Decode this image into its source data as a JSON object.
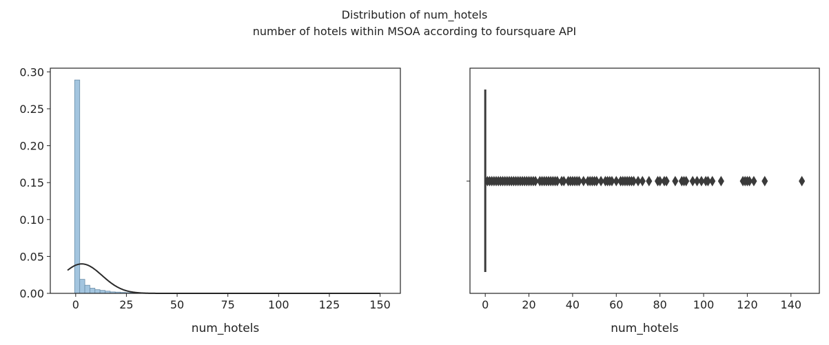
{
  "figure": {
    "title": "Distribution of num_hotels",
    "subtitle": "number of hotels within MSOA according to foursquare API"
  },
  "colors": {
    "bar_fill": "#a3c5df",
    "bar_edge": "#6a8da8",
    "kde_line": "#2a2a2a",
    "box": "#3a3a3a",
    "axes": "#222222"
  },
  "chart_data": [
    {
      "type": "bar",
      "name": "histogram-with-normal-fit",
      "xlabel": "num_hotels",
      "ylabel": "",
      "xlim": [
        -12.5,
        160
      ],
      "ylim": [
        0,
        0.305
      ],
      "xticks": [
        0,
        25,
        50,
        75,
        100,
        125,
        150
      ],
      "yticks": [
        0.0,
        0.05,
        0.1,
        0.15,
        0.2,
        0.25,
        0.3
      ],
      "ytick_labels": [
        "0.00",
        "0.05",
        "0.10",
        "0.15",
        "0.20",
        "0.25",
        "0.30"
      ],
      "bin_width": 2.5,
      "bin_start": -0.5,
      "values": [
        0.289,
        0.019,
        0.011,
        0.007,
        0.005,
        0.004,
        0.003,
        0.002,
        0.0017,
        0.0013,
        0.001,
        0.0008,
        0.0007,
        0.0006,
        0.0005,
        0.0005,
        0.0004,
        0.0004,
        0.0003,
        0.0003,
        0.0003,
        0.0002,
        0.0002,
        0.0002,
        0.0002,
        0.0002,
        0.0001,
        0.0001,
        0.0001,
        0.0001,
        0.0001,
        0.0001,
        0.0001,
        0.0001,
        0.0001,
        0.0001,
        0.0001,
        0.0001,
        0.0001,
        0.0001,
        0.0001,
        0.0001,
        0.0001,
        0.0001,
        0.0001,
        0.0001,
        0.0001,
        0.0001,
        0.0001,
        0.0001,
        0.0001,
        0.0001,
        0.0001,
        0.0001,
        0.0001,
        0.0001,
        0.0001,
        0.0001,
        0.0001,
        0.0001
      ],
      "normal_fit": {
        "mean": 3,
        "std": 10,
        "x_range": [
          -4,
          150
        ]
      },
      "grid": false
    },
    {
      "type": "scatter",
      "name": "boxplot",
      "xlabel": "num_hotels",
      "xlim": [
        -7,
        153
      ],
      "xticks": [
        0,
        20,
        40,
        60,
        80,
        100,
        120,
        140
      ],
      "box": {
        "q1": 0,
        "median": 0,
        "q3": 0,
        "whisker_low": 0,
        "whisker_high": 0
      },
      "outliers": [
        1,
        2,
        3,
        4,
        5,
        6,
        7,
        8,
        9,
        10,
        11,
        12,
        13,
        14,
        15,
        16,
        17,
        18,
        19,
        20,
        21,
        22,
        23,
        25,
        26,
        27,
        28,
        29,
        30,
        31,
        32,
        33,
        35,
        36,
        38,
        39,
        40,
        41,
        42,
        43,
        45,
        47,
        48,
        49,
        50,
        51,
        53,
        55,
        56,
        57,
        58,
        60,
        62,
        63,
        64,
        65,
        66,
        67,
        68,
        70,
        72,
        75,
        79,
        80,
        82,
        83,
        87,
        90,
        91,
        92,
        95,
        97,
        99,
        101,
        102,
        104,
        108,
        118,
        119,
        120,
        121,
        123,
        128,
        145
      ],
      "grid": false
    }
  ]
}
